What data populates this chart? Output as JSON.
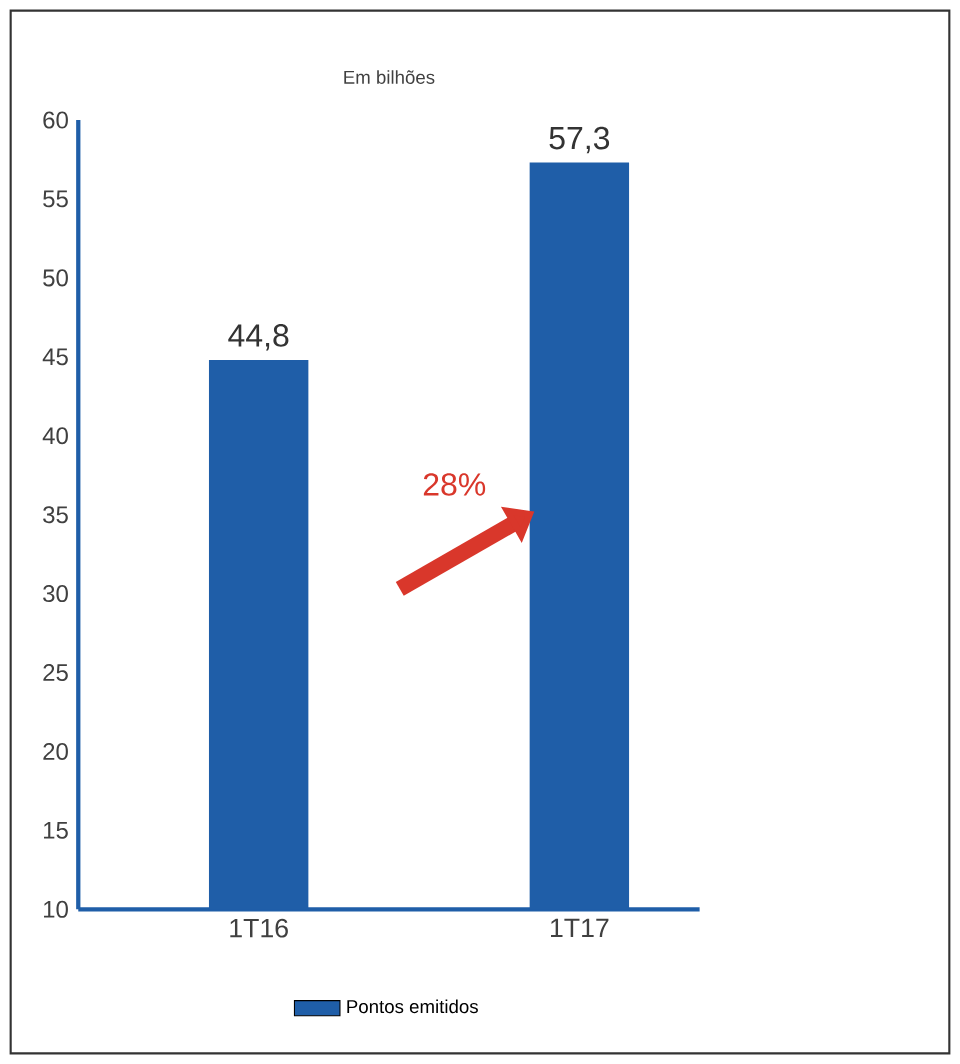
{
  "chart_data": {
    "type": "bar",
    "title": "Em bilhões",
    "categories": [
      "1T16",
      "1T17"
    ],
    "series": [
      {
        "name": "Pontos emitidos",
        "color": "#1f5ea8",
        "values": [
          44.8,
          57.3
        ],
        "value_labels": [
          "44,8",
          "57,3"
        ]
      }
    ],
    "ylim": [
      10,
      60
    ],
    "yticks": [
      10,
      15,
      20,
      25,
      30,
      35,
      40,
      45,
      50,
      55,
      60
    ],
    "annotations": [
      "28%"
    ],
    "legend": "bottom",
    "grid": false
  }
}
